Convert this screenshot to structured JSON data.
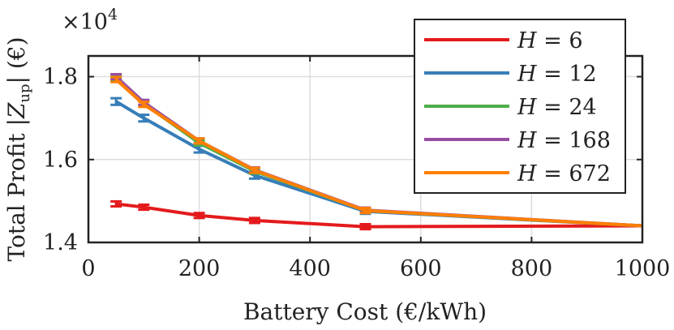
{
  "chart_data": {
    "type": "line",
    "title": "",
    "xlabel": "Battery Cost (€/kWh)",
    "ylabel": "Total Profit |Z_up| (€)",
    "ylabel_parts": {
      "pre": "Total Profit |",
      "var": "Z",
      "sub": "up",
      "post": "| (€)"
    },
    "y_exponent": "×10",
    "y_exponent_power": "4",
    "xlim": [
      0,
      1000
    ],
    "ylim": [
      1.4,
      1.85
    ],
    "xticks": [
      0,
      200,
      400,
      600,
      800,
      1000
    ],
    "xtick_labels": [
      "0",
      "200",
      "400",
      "600",
      "800",
      "1000"
    ],
    "yticks": [
      1.4,
      1.6,
      1.8
    ],
    "ytick_labels": [
      "1.4",
      "1.6",
      "1.8"
    ],
    "grid": true,
    "legend_position": "top-right",
    "x": [
      50,
      100,
      200,
      300,
      500,
      1000
    ],
    "series": [
      {
        "name": "H = 6",
        "label_var": "H",
        "label_val": "= 6",
        "color": "#e41a1c",
        "values": [
          1.493,
          1.485,
          1.465,
          1.453,
          1.438,
          1.44
        ],
        "errors": [
          0.006,
          0.006,
          0.006,
          0.006,
          0.006,
          0.0
        ]
      },
      {
        "name": "H = 12",
        "label_var": "H",
        "label_val": "= 12",
        "color": "#377eb8",
        "values": [
          1.74,
          1.7,
          1.625,
          1.562,
          1.475,
          1.44
        ],
        "errors": [
          0.008,
          0.008,
          0.008,
          0.008,
          0.006,
          0.0
        ]
      },
      {
        "name": "H = 24",
        "label_var": "H",
        "label_val": "= 24",
        "color": "#4daf4a",
        "values": [
          1.797,
          1.735,
          1.64,
          1.572,
          1.477,
          1.44
        ],
        "errors": [
          0.006,
          0.006,
          0.006,
          0.006,
          0.006,
          0.0
        ]
      },
      {
        "name": "H = 168",
        "label_var": "H",
        "label_val": "= 168",
        "color": "#984ea3",
        "values": [
          1.8,
          1.738,
          1.645,
          1.575,
          1.478,
          1.44
        ],
        "errors": [
          0.006,
          0.006,
          0.006,
          0.006,
          0.006,
          0.0
        ]
      },
      {
        "name": "H = 672",
        "label_var": "H",
        "label_val": "= 672",
        "color": "#ff7f00",
        "values": [
          1.793,
          1.733,
          1.645,
          1.574,
          1.477,
          1.44
        ],
        "errors": [
          0.006,
          0.006,
          0.006,
          0.006,
          0.006,
          0.0
        ]
      }
    ]
  }
}
